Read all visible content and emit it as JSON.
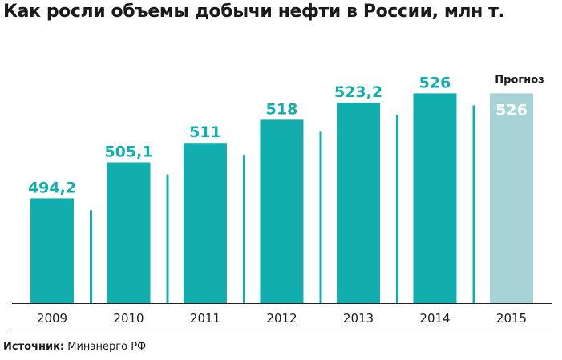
{
  "chart_data": {
    "type": "bar",
    "title": "Как росли объемы добычи нефти в России, млн т.",
    "categories": [
      "2009",
      "2010",
      "2011",
      "2012",
      "2013",
      "2014",
      "2015"
    ],
    "values": [
      494.2,
      505.1,
      511,
      518,
      523.2,
      526,
      526
    ],
    "value_labels": [
      "494,2",
      "505,1",
      "511",
      "518",
      "523,2",
      "526",
      "526"
    ],
    "forecast_flags": [
      false,
      false,
      false,
      false,
      false,
      false,
      true
    ],
    "forecast_label": "Прогноз",
    "xlabel": "",
    "ylabel": "",
    "grid": false,
    "legend": "none",
    "colors": {
      "bar": "#12aeae",
      "forecast_bar": "#a6d4d6",
      "forecast_value_text": "#ffffff",
      "value_text": "#12aeae",
      "axis": "#222222",
      "text": "#1a1a1a"
    }
  },
  "source": {
    "label": "Источник:",
    "text": "Минэнерго РФ"
  }
}
